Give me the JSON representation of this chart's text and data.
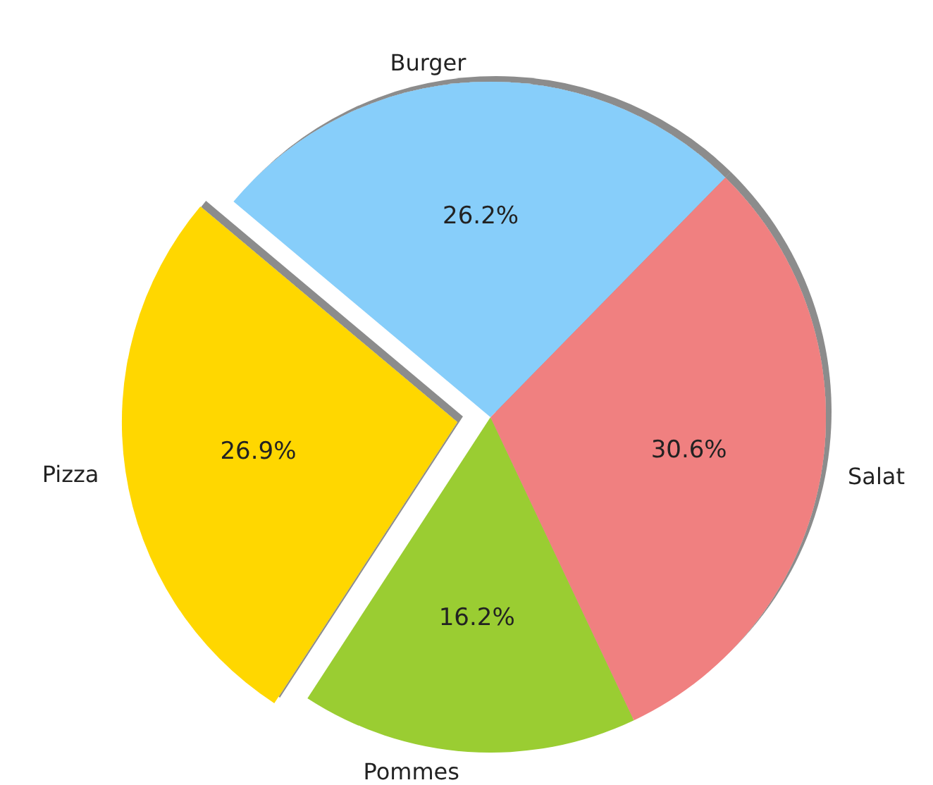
{
  "chart_data": {
    "type": "pie",
    "categories": [
      "Pizza",
      "Pommes",
      "Salat",
      "Burger"
    ],
    "values": [
      26.9,
      16.2,
      30.6,
      26.2
    ],
    "colors": [
      "#ffd700",
      "#9acd32",
      "#f08080",
      "#87cefa"
    ],
    "value_labels": [
      "26.9%",
      "16.2%",
      "30.6%",
      "26.2%"
    ],
    "legend": false
  }
}
